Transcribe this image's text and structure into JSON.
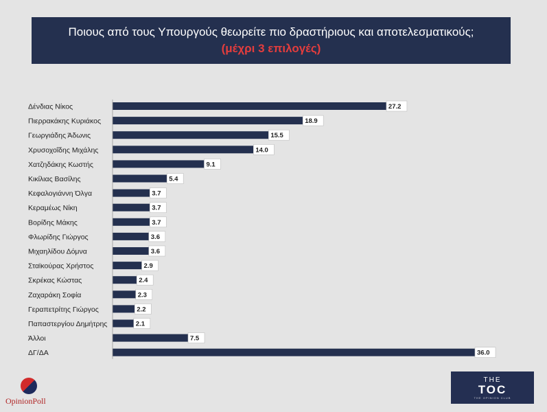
{
  "header": {
    "title": "Ποιους από τους Υπουργούς θεωρείτε πιο δραστήριους και αποτελεσματικούς;",
    "subtitle": "(μέχρι 3 επιλογές)"
  },
  "colors": {
    "bar": "#24304f",
    "title_bg": "#24304f",
    "subtitle": "#e43d3d",
    "background": "#e4e4e4"
  },
  "chart_data": {
    "type": "bar",
    "orientation": "horizontal",
    "categories": [
      "Δένδιας Νίκος",
      "Πιερρακάκης Κυριάκος",
      "Γεωργιάδης Άδωνις",
      "Χρυσοχοΐδης Μιχάλης",
      "Χατζηδάκης Κωστής",
      "Κικίλιας Βασίλης",
      "Κεφαλογιάννη Όλγα",
      "Κεραμέως Νίκη",
      "Βορίδης Μάκης",
      "Φλωρίδης Γιώργος",
      "Μιχαηλίδου Δόμνα",
      "Σταϊκούρας Χρήστος",
      "Σκρέκας Κώστας",
      "Ζαχαράκη Σοφία",
      "Γεραπετρίτης Γιώργος",
      "Παπαστεργίου Δημήτρης",
      "Άλλοι",
      "ΔΓ/ΔΑ"
    ],
    "values": [
      27.2,
      18.9,
      15.5,
      14.0,
      9.1,
      5.4,
      3.7,
      3.7,
      3.7,
      3.6,
      3.6,
      2.9,
      2.4,
      2.3,
      2.2,
      2.1,
      7.5,
      36.0
    ],
    "value_labels": [
      "27.2",
      "18.9",
      "15.5",
      "14.0",
      "9.1",
      "5.4",
      "3.7",
      "3.7",
      "3.7",
      "3.6",
      "3.6",
      "2.9",
      "2.4",
      "2.3",
      "2.2",
      "2.1",
      "7.5",
      "36.0"
    ],
    "xlim": [
      0,
      36
    ],
    "title": "Ποιους από τους Υπουργούς θεωρείτε πιο δραστήριους και αποτελεσματικούς;",
    "xlabel": "",
    "ylabel": "",
    "grid": false
  },
  "logos": {
    "left_text": "OpinionPoll",
    "right_top": "THE",
    "right_main": "TOC",
    "right_small": "THE OPINION CLUB"
  }
}
